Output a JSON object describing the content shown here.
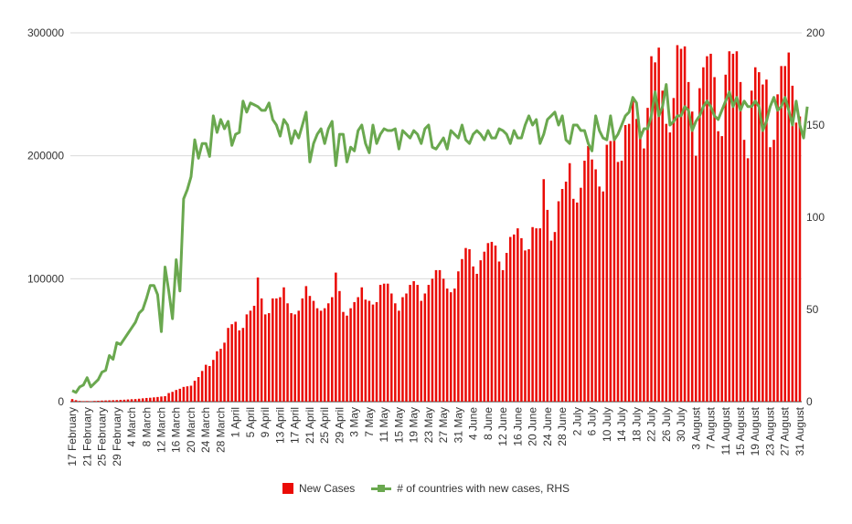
{
  "chart_data": {
    "type": "bar+line",
    "x_tick_labels": [
      "17 February",
      "21 February",
      "25 February",
      "29 February",
      "4 March",
      "8 March",
      "12 March",
      "16 March",
      "20 March",
      "24 March",
      "28 March",
      "1 April",
      "5 April",
      "9 April",
      "13 April",
      "17 April",
      "21 April",
      "25 April",
      "29 April",
      "3 May",
      "7 May",
      "11 May",
      "15 May",
      "19 May",
      "23 May",
      "27 May",
      "31 May",
      "4 June",
      "8 June",
      "12 June",
      "16 June",
      "20 June",
      "24 June",
      "28 June",
      "2 July",
      "6 July",
      "10 July",
      "14 July",
      "18 July",
      "22 July",
      "26 July",
      "30 July",
      "3 August",
      "7 August",
      "11 August",
      "15 August",
      "19 August",
      "23 August",
      "27 August",
      "31 August"
    ],
    "y_left_ticks": [
      "0",
      "100000",
      "200000",
      "300000"
    ],
    "y_right_ticks": [
      "0",
      "50",
      "100",
      "150",
      "200"
    ],
    "ylim_left": [
      0,
      300000
    ],
    "ylim_right": [
      0,
      200
    ],
    "grid": "horizontal",
    "legend_position": "bottom",
    "series": [
      {
        "name": "New Cases",
        "type": "bar",
        "axis": "left",
        "color": "#ea0b06",
        "values": [
          2100,
          1200,
          600,
          450,
          500,
          400,
          600,
          700,
          900,
          1000,
          1100,
          1200,
          1300,
          1500,
          1600,
          1800,
          2000,
          2100,
          2400,
          2700,
          3000,
          3200,
          3500,
          3800,
          4200,
          4500,
          7000,
          8000,
          9500,
          10500,
          12000,
          12500,
          13000,
          17000,
          20000,
          25000,
          30000,
          29000,
          34000,
          41000,
          43000,
          48000,
          60000,
          63000,
          65000,
          58000,
          60000,
          71000,
          74000,
          78000,
          101000,
          84000,
          71000,
          72000,
          84000,
          84000,
          85000,
          93000,
          80000,
          72000,
          71000,
          74000,
          84000,
          94000,
          86000,
          82000,
          76000,
          74000,
          76000,
          80000,
          85000,
          105000,
          90000,
          73000,
          70000,
          76000,
          81000,
          85000,
          93000,
          83000,
          82000,
          79000,
          81000,
          95000,
          96000,
          96000,
          88000,
          80000,
          74000,
          85000,
          88000,
          95000,
          98000,
          95000,
          82000,
          88000,
          95000,
          100000,
          107000,
          107000,
          100000,
          92000,
          89000,
          92000,
          106000,
          116000,
          125000,
          124000,
          110000,
          104000,
          115000,
          122000,
          129000,
          130000,
          127000,
          114000,
          107000,
          121000,
          134000,
          136000,
          141000,
          133000,
          123000,
          124000,
          142000,
          141000,
          141000,
          181000,
          156000,
          131000,
          138000,
          163000,
          173000,
          179000,
          194000,
          165000,
          162000,
          174000,
          196000,
          208000,
          197000,
          189000,
          175000,
          171000,
          209000,
          212000,
          215000,
          195000,
          196000,
          225000,
          226000,
          248000,
          230000,
          220000,
          206000,
          239000,
          281000,
          276000,
          288000,
          253000,
          226000,
          219000,
          247000,
          290000,
          287000,
          289000,
          260000,
          236000,
          200000,
          255000,
          272000,
          281000,
          283000,
          264000,
          220000,
          216000,
          266000,
          285000,
          283000,
          285000,
          260000,
          213000,
          198000,
          253000,
          272000,
          268000,
          258000,
          262000,
          207000,
          213000,
          250000,
          273000,
          273000,
          284000,
          257000,
          227000,
          232000
        ]
      },
      {
        "name": "# of countries with new cases, RHS",
        "type": "line",
        "axis": "right",
        "color": "#6aa84f",
        "values": [
          6,
          5,
          8,
          9,
          13,
          8,
          10,
          12,
          16,
          17,
          25,
          23,
          32,
          31,
          34,
          37,
          40,
          43,
          48,
          50,
          56,
          63,
          63,
          58,
          38,
          73,
          60,
          45,
          77,
          60,
          110,
          115,
          122,
          142,
          132,
          140,
          140,
          133,
          155,
          146,
          153,
          148,
          152,
          139,
          145,
          146,
          163,
          157,
          162,
          161,
          160,
          158,
          158,
          162,
          153,
          150,
          144,
          153,
          150,
          140,
          147,
          143,
          150,
          157,
          130,
          140,
          145,
          148,
          140,
          148,
          152,
          128,
          145,
          145,
          130,
          138,
          136,
          147,
          150,
          140,
          135,
          150,
          140,
          145,
          148,
          147,
          147,
          148,
          137,
          147,
          145,
          143,
          147,
          145,
          140,
          148,
          150,
          138,
          137,
          140,
          143,
          137,
          147,
          145,
          143,
          150,
          142,
          140,
          145,
          147,
          145,
          142,
          147,
          143,
          143,
          148,
          147,
          145,
          140,
          147,
          143,
          143,
          150,
          155,
          150,
          153,
          140,
          145,
          153,
          155,
          157,
          150,
          155,
          142,
          140,
          150,
          150,
          147,
          147,
          140,
          136,
          155,
          147,
          143,
          142,
          155,
          142,
          145,
          150,
          155,
          157,
          165,
          162,
          143,
          148,
          148,
          155,
          168,
          155,
          160,
          172,
          150,
          152,
          155,
          155,
          160,
          158,
          147,
          152,
          155,
          160,
          163,
          160,
          155,
          153,
          158,
          163,
          168,
          160,
          165,
          158,
          163,
          160,
          160,
          163,
          160,
          147,
          152,
          160,
          165,
          158,
          160,
          165,
          158,
          150,
          163,
          150,
          143,
          160
        ]
      }
    ]
  }
}
